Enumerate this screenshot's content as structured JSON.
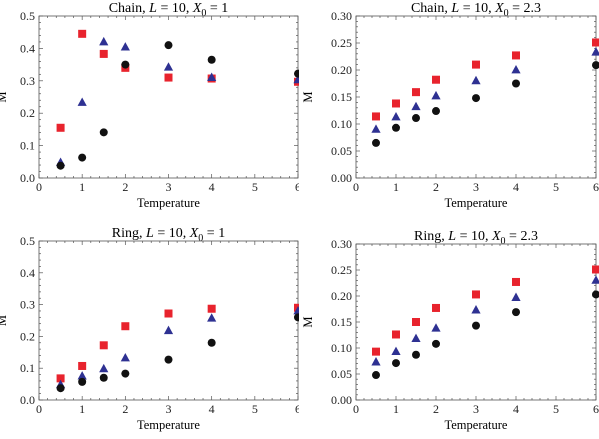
{
  "colors": {
    "red": "#e8232d",
    "blue": "#2e3192",
    "black": "#111111"
  },
  "series_styles": [
    {
      "color": "red",
      "marker": "square"
    },
    {
      "color": "blue",
      "marker": "triangle"
    },
    {
      "color": "black",
      "marker": "circle"
    }
  ],
  "chart_data": [
    {
      "type": "scatter",
      "title": {
        "prefix": "Chain, ",
        "var": "L",
        "mid": " = 10, ",
        "sym": "X",
        "sub": "0",
        "suffix": " = 1"
      },
      "xlabel": "Temperature",
      "ylabel": "M",
      "xlim": [
        0,
        6
      ],
      "ylim": [
        0,
        0.5
      ],
      "xticks": [
        "0",
        "1",
        "2",
        "3",
        "4",
        "5",
        "6"
      ],
      "yticks": [
        "0.0",
        "0.1",
        "0.2",
        "0.3",
        "0.4",
        "0.5"
      ],
      "x": [
        0.5,
        1,
        1.5,
        2,
        3,
        4,
        6
      ],
      "series": [
        {
          "values": [
            0.155,
            0.445,
            0.383,
            0.34,
            0.31,
            0.307,
            0.297
          ]
        },
        {
          "values": [
            0.048,
            0.233,
            0.42,
            0.404,
            0.342,
            0.31,
            0.303
          ]
        },
        {
          "values": [
            0.038,
            0.063,
            0.141,
            0.35,
            0.41,
            0.365,
            0.322
          ]
        }
      ]
    },
    {
      "type": "scatter",
      "title": {
        "prefix": "Chain, ",
        "var": "L",
        "mid": " = 10, ",
        "sym": "X",
        "sub": "0",
        "suffix": " = 2.3"
      },
      "xlabel": "Temperature",
      "ylabel": "M",
      "xlim": [
        0,
        6
      ],
      "ylim": [
        0,
        0.3
      ],
      "xticks": [
        "0",
        "1",
        "2",
        "3",
        "4",
        "5",
        "6"
      ],
      "yticks": [
        "0.00",
        "0.05",
        "0.10",
        "0.15",
        "0.20",
        "0.25",
        "0.30"
      ],
      "x": [
        0.5,
        1,
        1.5,
        2,
        3,
        4,
        6
      ],
      "series": [
        {
          "values": [
            0.114,
            0.138,
            0.159,
            0.182,
            0.21,
            0.227,
            0.251
          ]
        },
        {
          "values": [
            0.09,
            0.113,
            0.132,
            0.152,
            0.18,
            0.2,
            0.233
          ]
        },
        {
          "values": [
            0.065,
            0.093,
            0.111,
            0.124,
            0.148,
            0.175,
            0.209
          ]
        }
      ]
    },
    {
      "type": "scatter",
      "title": {
        "prefix": "Ring, ",
        "var": "L",
        "mid": " = 10, ",
        "sym": "X",
        "sub": "0",
        "suffix": " = 1"
      },
      "xlabel": "Temperature",
      "ylabel": "M",
      "xlim": [
        0,
        6
      ],
      "ylim": [
        0,
        0.5
      ],
      "xticks": [
        "0",
        "1",
        "2",
        "3",
        "4",
        "5",
        "6"
      ],
      "yticks": [
        "0.0",
        "0.1",
        "0.2",
        "0.3",
        "0.4",
        "0.5"
      ],
      "x": [
        0.5,
        1,
        1.5,
        2,
        3,
        4,
        6
      ],
      "series": [
        {
          "values": [
            0.068,
            0.107,
            0.172,
            0.232,
            0.272,
            0.287,
            0.29
          ]
        },
        {
          "values": [
            0.048,
            0.075,
            0.098,
            0.132,
            0.218,
            0.257,
            0.28
          ]
        },
        {
          "values": [
            0.037,
            0.057,
            0.07,
            0.083,
            0.127,
            0.18,
            0.26
          ]
        }
      ]
    },
    {
      "type": "scatter",
      "title": {
        "prefix": "Ring, ",
        "var": "L",
        "mid": " = 10, ",
        "sym": "X",
        "sub": "0",
        "suffix": " = 2.3"
      },
      "xlabel": "Temperature",
      "ylabel": "M",
      "xlim": [
        0,
        6
      ],
      "ylim": [
        0,
        0.3
      ],
      "xticks": [
        "0",
        "1",
        "2",
        "3",
        "4",
        "5",
        "6"
      ],
      "yticks": [
        "0.00",
        "0.05",
        "0.10",
        "0.15",
        "0.20",
        "0.25",
        "0.30"
      ],
      "x": [
        0.5,
        1,
        1.5,
        2,
        3,
        4,
        6
      ],
      "series": [
        {
          "values": [
            0.093,
            0.126,
            0.15,
            0.177,
            0.203,
            0.227,
            0.251
          ]
        },
        {
          "values": [
            0.073,
            0.093,
            0.118,
            0.138,
            0.173,
            0.197,
            0.23
          ]
        },
        {
          "values": [
            0.048,
            0.071,
            0.087,
            0.108,
            0.143,
            0.169,
            0.203
          ]
        }
      ]
    }
  ]
}
